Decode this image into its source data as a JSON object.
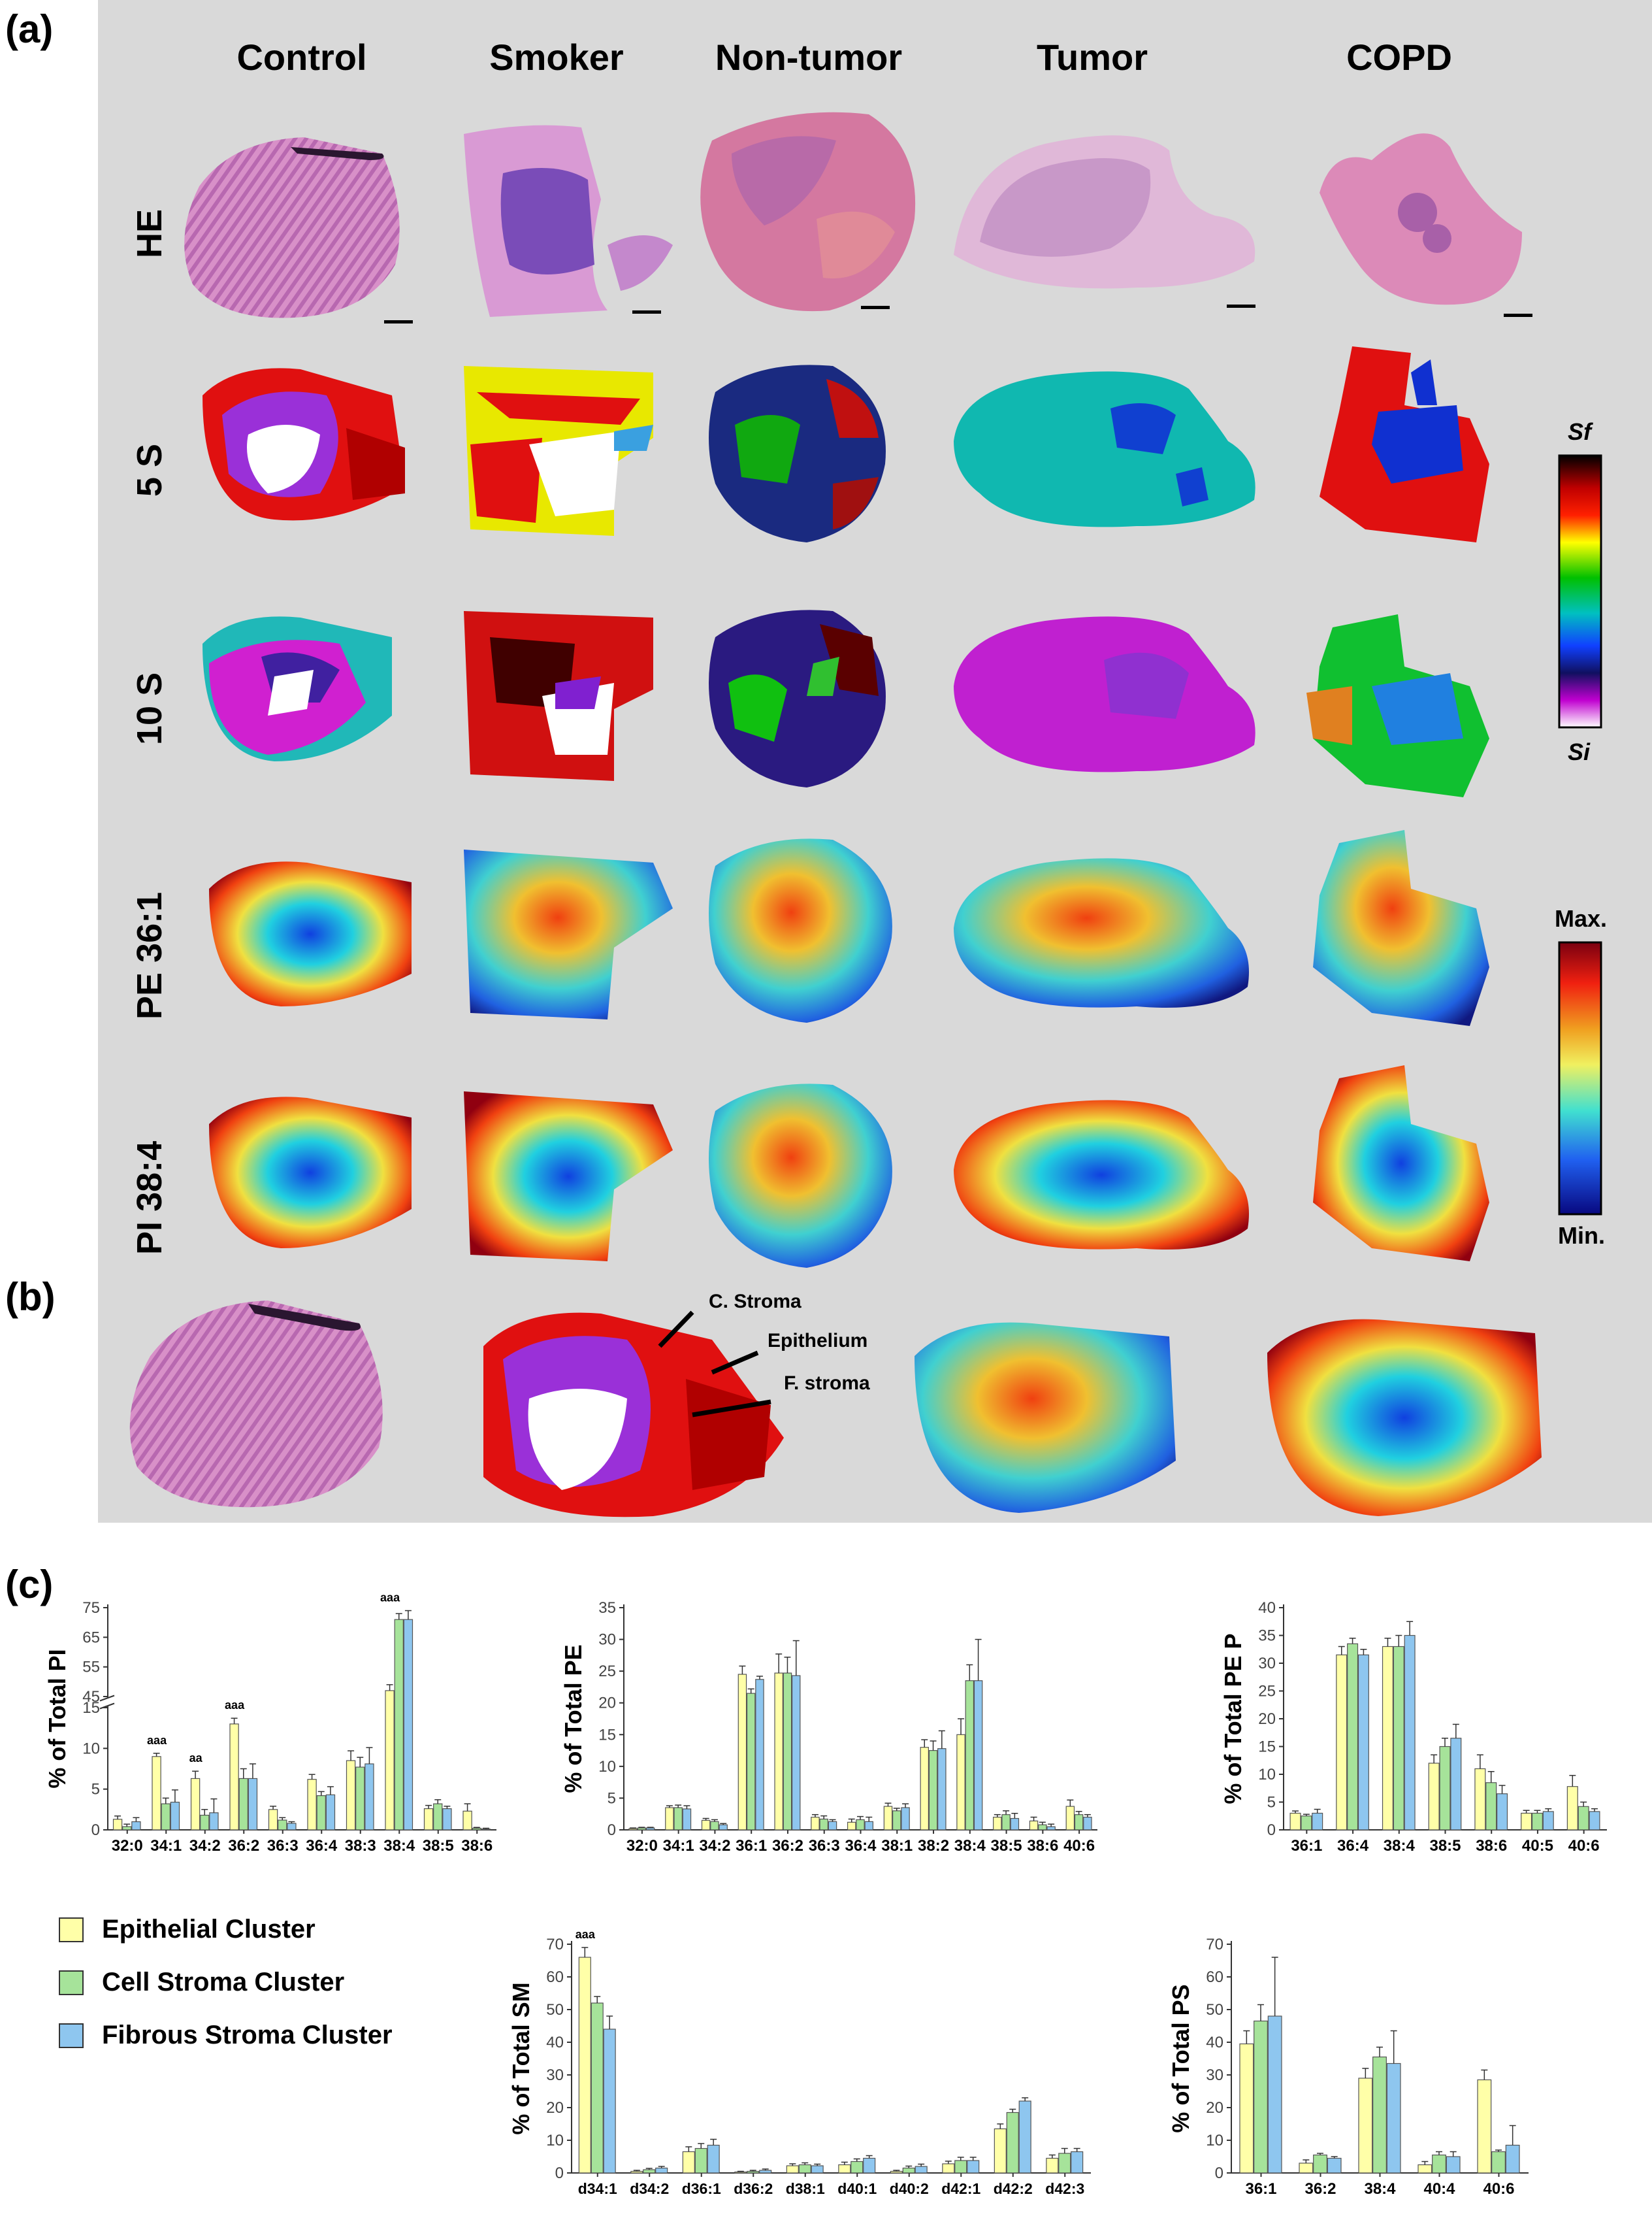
{
  "panel_labels": {
    "a": "(a)",
    "b": "(b)",
    "c": "(c)"
  },
  "columns": [
    "Control",
    "Smoker",
    "Non-tumor",
    "Tumor",
    "COPD"
  ],
  "rows": [
    "HE",
    "5 S",
    "10 S",
    "PE 36:1",
    "PI 38:4"
  ],
  "colorbars": {
    "segmentation": {
      "top_label": "Sf",
      "bottom_label": "Si"
    },
    "intensity": {
      "top_label": "Max.",
      "bottom_label": "Min."
    }
  },
  "annotations": {
    "c_stroma": "C. Stroma",
    "epithelium": "Epithelium",
    "f_stroma": "F. stroma"
  },
  "legend": [
    {
      "label": "Epithelial Cluster",
      "color": "#ffffa8"
    },
    {
      "label": "Cell Stroma Cluster",
      "color": "#a6e39a"
    },
    {
      "label": "Fibrous Stroma Cluster",
      "color": "#8ec6ef"
    }
  ],
  "colors": {
    "background_panel": "#d9d9d9",
    "epithelial": "#ffffa8",
    "cell_stroma": "#a6e39a",
    "fibrous_stroma": "#8ec6ef"
  },
  "chart_data": [
    {
      "type": "bar",
      "ylabel": "% of Total PI",
      "broken_axis": true,
      "ylim": [
        0,
        75
      ],
      "yticks": [
        "0",
        "5",
        "10",
        "15",
        "45",
        "55",
        "65",
        "75"
      ],
      "categories": [
        "32:0",
        "34:1",
        "34:2",
        "36:2",
        "36:3",
        "36:4",
        "38:3",
        "38:4",
        "38:5",
        "38:6"
      ],
      "series": [
        {
          "name": "Epithelial Cluster",
          "values": [
            1.3,
            9,
            6.3,
            13,
            2.5,
            6.2,
            8.5,
            47,
            2.6,
            2.3
          ]
        },
        {
          "name": "Cell Stroma Cluster",
          "values": [
            0.4,
            3.2,
            1.8,
            6.3,
            1.2,
            4.2,
            7.7,
            71,
            3.2,
            0.2
          ]
        },
        {
          "name": "Fibrous Stroma Cluster",
          "values": [
            1,
            3.4,
            2.1,
            6.3,
            0.8,
            4.3,
            8.1,
            71,
            2.6,
            0.1
          ]
        }
      ],
      "errors": [
        [
          0.4,
          0.4,
          0.9,
          0.7,
          0.4,
          0.6,
          1.2,
          2,
          0.4,
          0.9
        ],
        [
          0.3,
          0.7,
          0.7,
          1.2,
          0.3,
          0.5,
          1.2,
          2,
          0.5,
          0.1
        ],
        [
          0.5,
          1.5,
          1.7,
          1.8,
          0.2,
          1,
          2,
          3,
          0.3,
          0.1
        ]
      ],
      "annotations": [
        {
          "category": "34:1",
          "text": "aaa"
        },
        {
          "category": "34:2",
          "text": "aa"
        },
        {
          "category": "36:2",
          "text": "aaa"
        },
        {
          "category": "38:4",
          "text": "aaa"
        }
      ]
    },
    {
      "type": "bar",
      "ylabel": "% of Total PE",
      "ylim": [
        0,
        35
      ],
      "yticks": [
        "0",
        "5",
        "10",
        "15",
        "20",
        "25",
        "30",
        "35"
      ],
      "categories": [
        "32:0",
        "34:1",
        "34:2",
        "36:1",
        "36:2",
        "36:3",
        "36:4",
        "38:1",
        "38:2",
        "38:4",
        "38:5",
        "38:6",
        "40:6"
      ],
      "series": [
        {
          "name": "Epithelial Cluster",
          "values": [
            0.2,
            3.5,
            1.5,
            24.5,
            24.7,
            2,
            1.2,
            3.7,
            13,
            15,
            2,
            1.4,
            3.7
          ]
        },
        {
          "name": "Cell Stroma Cluster",
          "values": [
            0.3,
            3.5,
            1.3,
            21.5,
            24.7,
            1.7,
            1.6,
            3,
            12.5,
            23.5,
            2.4,
            0.8,
            2.4
          ]
        },
        {
          "name": "Fibrous Stroma Cluster",
          "values": [
            0.3,
            3.3,
            0.8,
            23.7,
            24.3,
            1.3,
            1.3,
            3.5,
            12.8,
            23.5,
            1.8,
            0.5,
            2
          ]
        }
      ],
      "errors": [
        [
          0.1,
          0.3,
          0.3,
          1.3,
          3,
          0.4,
          0.5,
          0.5,
          1.2,
          2.5,
          0.4,
          0.6,
          1
        ],
        [
          0.1,
          0.4,
          0.3,
          0.7,
          2.5,
          0.5,
          0.5,
          0.4,
          1.5,
          2.5,
          0.6,
          0.4,
          0.5
        ],
        [
          0.1,
          0.5,
          0.2,
          0.5,
          5.5,
          0.3,
          0.7,
          0.6,
          2.8,
          6.5,
          0.8,
          0.4,
          0.4
        ]
      ]
    },
    {
      "type": "bar",
      "ylabel": "% of Total PE P",
      "ylim": [
        0,
        40
      ],
      "yticks": [
        "0",
        "5",
        "10",
        "15",
        "20",
        "25",
        "30",
        "35",
        "40"
      ],
      "categories": [
        "36:1",
        "36:4",
        "38:4",
        "38:5",
        "38:6",
        "40:5",
        "40:6"
      ],
      "series": [
        {
          "name": "Epithelial Cluster",
          "values": [
            3,
            31.5,
            33,
            12,
            11,
            3,
            7.8
          ]
        },
        {
          "name": "Cell Stroma Cluster",
          "values": [
            2.5,
            33.5,
            33,
            15,
            8.5,
            3,
            4.2
          ]
        },
        {
          "name": "Fibrous Stroma Cluster",
          "values": [
            3,
            31.5,
            35,
            16.5,
            6.5,
            3.3,
            3.3
          ]
        }
      ],
      "errors": [
        [
          0.4,
          1.5,
          1.5,
          1.5,
          2.5,
          0.5,
          2
        ],
        [
          0.3,
          1,
          2,
          1.5,
          2,
          0.5,
          0.8
        ],
        [
          0.7,
          1,
          2.5,
          2.5,
          1.5,
          0.5,
          0.5
        ]
      ]
    },
    {
      "type": "bar",
      "ylabel": "% of Total SM",
      "ylim": [
        0,
        70
      ],
      "yticks": [
        "0",
        "10",
        "20",
        "30",
        "40",
        "50",
        "60",
        "70"
      ],
      "categories": [
        "d34:1",
        "d34:2",
        "d36:1",
        "d36:2",
        "d38:1",
        "d40:1",
        "d40:2",
        "d42:1",
        "d42:2",
        "d42:3"
      ],
      "series": [
        {
          "name": "Epithelial Cluster",
          "values": [
            66,
            0.5,
            6.5,
            0.3,
            2.2,
            2.5,
            0.5,
            2.8,
            13.5,
            4.5
          ]
        },
        {
          "name": "Cell Stroma Cluster",
          "values": [
            52,
            1,
            7.5,
            0.5,
            2.5,
            3.5,
            1.5,
            3.8,
            18.5,
            6
          ]
        },
        {
          "name": "Fibrous Stroma Cluster",
          "values": [
            44,
            1.5,
            8.5,
            0.8,
            2.2,
            4.5,
            2,
            3.8,
            22,
            6.5
          ]
        }
      ],
      "errors": [
        [
          3,
          0.3,
          1.5,
          0.2,
          0.6,
          0.8,
          0.3,
          0.8,
          1.5,
          1
        ],
        [
          2,
          0.4,
          1.5,
          0.3,
          0.6,
          0.8,
          0.6,
          1,
          1,
          1.5
        ],
        [
          4,
          0.5,
          1.8,
          0.4,
          0.5,
          0.8,
          0.7,
          1,
          1,
          1
        ]
      ],
      "annotations": [
        {
          "category": "d34:1",
          "text": "aaa"
        }
      ]
    },
    {
      "type": "bar",
      "ylabel": "% of Total PS",
      "ylim": [
        0,
        70
      ],
      "yticks": [
        "0",
        "10",
        "20",
        "30",
        "40",
        "50",
        "60",
        "70"
      ],
      "categories": [
        "36:1",
        "36:2",
        "38:4",
        "40:4",
        "40:6"
      ],
      "series": [
        {
          "name": "Epithelial Cluster",
          "values": [
            39.5,
            3,
            29,
            2.5,
            28.5
          ]
        },
        {
          "name": "Cell Stroma Cluster",
          "values": [
            46.5,
            5.5,
            35.5,
            5.5,
            6.5
          ]
        },
        {
          "name": "Fibrous Stroma Cluster",
          "values": [
            48,
            4.5,
            33.5,
            5,
            8.5
          ]
        }
      ],
      "errors": [
        [
          4,
          1,
          3,
          1,
          3
        ],
        [
          5,
          0.5,
          3,
          1,
          0.5
        ],
        [
          18,
          0.5,
          10,
          1.5,
          6
        ]
      ]
    }
  ]
}
